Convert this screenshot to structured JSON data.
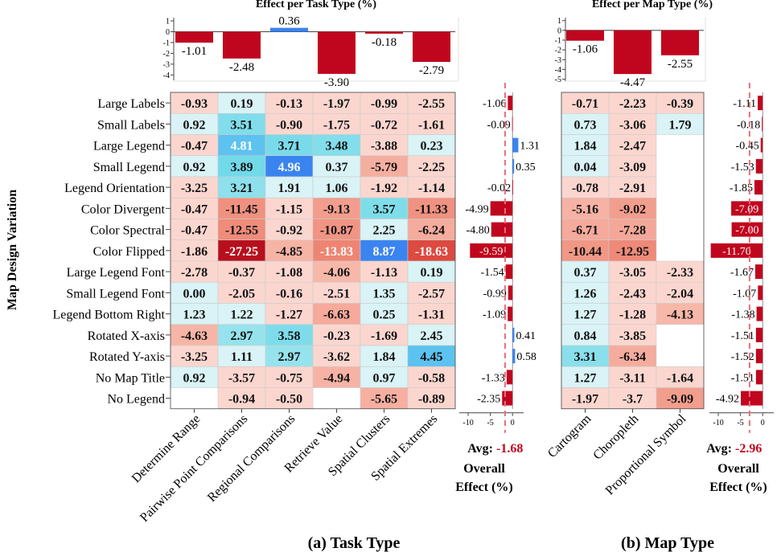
{
  "titles": {
    "task_top": "Effect per Task Type (%)",
    "map_top": "Effect per Map Type (%)",
    "ylabel": "Map Design Variation",
    "panel_a": "(a) Task Type",
    "panel_b": "(b) Map Type",
    "overall": [
      "Overall",
      "Effect (%)"
    ],
    "avg_label": "Avg:",
    "avg_task": "-1.68",
    "avg_map": "-2.96"
  },
  "colors": {
    "neg_bar": "#c0061e",
    "pos_bar": "#3a84f0",
    "avg_line": "#e8707a",
    "avg_text": "#c0061e"
  },
  "chart_data": [
    {
      "type": "heatmap",
      "title": "(a) Task Type",
      "ylabel": "Map Design Variation",
      "rows": [
        "Large Labels",
        "Small Labels",
        "Large Legend",
        "Small Legend",
        "Legend Orientation",
        "Color Divergent",
        "Color Spectral",
        "Color Flipped",
        "Large Legend Font",
        "Small Legend Font",
        "Legend Bottom Right",
        "Rotated X-axis",
        "Rotated Y-axis",
        "No Map Title",
        "No Legend"
      ],
      "columns": [
        "Determine Range",
        "Pairwise Point Comparisons",
        "Regional Comparisons",
        "Retrieve Value",
        "Spatial Clusters",
        "Spatial Extremes"
      ],
      "values": [
        [
          -0.93,
          0.19,
          -0.13,
          -1.97,
          -0.99,
          -2.55
        ],
        [
          0.92,
          3.51,
          -0.9,
          -1.75,
          -0.72,
          -1.61
        ],
        [
          -0.47,
          4.81,
          3.71,
          3.48,
          -3.88,
          0.23
        ],
        [
          0.92,
          3.89,
          4.96,
          0.37,
          -5.79,
          -2.25
        ],
        [
          -3.25,
          3.21,
          1.91,
          1.06,
          -1.92,
          -1.14
        ],
        [
          -0.47,
          -11.45,
          -1.15,
          -9.13,
          3.57,
          -11.33
        ],
        [
          -0.47,
          -12.55,
          -0.92,
          -10.87,
          2.25,
          -6.24
        ],
        [
          -1.86,
          -27.25,
          -4.85,
          -13.83,
          8.87,
          -18.63
        ],
        [
          -2.78,
          -0.37,
          -1.08,
          -4.06,
          -1.13,
          0.19
        ],
        [
          0.0,
          -2.05,
          -0.16,
          -2.51,
          1.35,
          -2.57
        ],
        [
          1.23,
          1.22,
          -1.27,
          -6.63,
          0.25,
          -1.31
        ],
        [
          -4.63,
          2.97,
          3.58,
          -0.23,
          -1.69,
          2.45
        ],
        [
          -3.25,
          1.11,
          2.97,
          -3.62,
          1.84,
          4.45
        ],
        [
          0.92,
          -3.57,
          -0.75,
          -4.94,
          0.97,
          -0.58
        ],
        [
          null,
          -0.94,
          -0.5,
          null,
          -5.65,
          -0.89
        ]
      ],
      "value_labels": [
        [
          "-0.93",
          "0.19",
          "-0.13",
          "-1.97",
          "-0.99",
          "-2.55"
        ],
        [
          "0.92",
          "3.51",
          "-0.90",
          "-1.75",
          "-0.72",
          "-1.61"
        ],
        [
          "-0.47",
          "4.81",
          "3.71",
          "3.48",
          "-3.88",
          "0.23"
        ],
        [
          "0.92",
          "3.89",
          "4.96",
          "0.37",
          "-5.79",
          "-2.25"
        ],
        [
          "-3.25",
          "3.21",
          "1.91",
          "1.06",
          "-1.92",
          "-1.14"
        ],
        [
          "-0.47",
          "-11.45",
          "-1.15",
          "-9.13",
          "3.57",
          "-11.33"
        ],
        [
          "-0.47",
          "-12.55",
          "-0.92",
          "-10.87",
          "2.25",
          "-6.24"
        ],
        [
          "-1.86",
          "-27.25",
          "-4.85",
          "-13.83",
          "8.87",
          "-18.63"
        ],
        [
          "-2.78",
          "-0.37",
          "-1.08",
          "-4.06",
          "-1.13",
          "0.19"
        ],
        [
          "0.00",
          "-2.05",
          "-0.16",
          "-2.51",
          "1.35",
          "-2.57"
        ],
        [
          "1.23",
          "1.22",
          "-1.27",
          "-6.63",
          "0.25",
          "-1.31"
        ],
        [
          "-4.63",
          "2.97",
          "3.58",
          "-0.23",
          "-1.69",
          "2.45"
        ],
        [
          "-3.25",
          "1.11",
          "2.97",
          "-3.62",
          "1.84",
          "4.45"
        ],
        [
          "0.92",
          "-3.57",
          "-0.75",
          "-4.94",
          "0.97",
          "-0.58"
        ],
        [
          "",
          "-0.94",
          "-0.50",
          "",
          "-5.65",
          "-0.89"
        ]
      ]
    },
    {
      "type": "bar",
      "title": "Effect per Task Type (%)",
      "categories": [
        "Determine Range",
        "Pairwise Point Comparisons",
        "Regional Comparisons",
        "Retrieve Value",
        "Spatial Clusters",
        "Spatial Extremes"
      ],
      "values": [
        -1.01,
        -2.48,
        0.36,
        -3.9,
        -0.18,
        -2.79
      ],
      "value_labels": [
        "-1.01",
        "-2.48",
        "0.36",
        "-3.90",
        "-0.18",
        "-2.79"
      ],
      "ylim": [
        -4.5,
        1.3
      ],
      "yticks": [
        1,
        0,
        -1,
        -2,
        -3,
        -4
      ],
      "ytick_labels": [
        "1",
        "0",
        "-1",
        "-2",
        "-3",
        "-4"
      ]
    },
    {
      "type": "bar",
      "orientation": "horizontal",
      "title": "Overall Effect (%)",
      "categories": [
        "Large Labels",
        "Small Labels",
        "Large Legend",
        "Small Legend",
        "Legend Orientation",
        "Color Divergent",
        "Color Spectral",
        "Color Flipped",
        "Large Legend Font",
        "Small Legend Font",
        "Legend Bottom Right",
        "Rotated X-axis",
        "Rotated Y-axis",
        "No Map Title",
        "No Legend"
      ],
      "values": [
        -1.06,
        -0.09,
        1.31,
        0.35,
        -0.02,
        -4.99,
        -4.8,
        -9.59,
        -1.54,
        -0.99,
        -1.09,
        0.41,
        0.58,
        -1.33,
        -2.35
      ],
      "value_labels": [
        "-1.06",
        "-0.09",
        "1.31",
        "0.35",
        "-0.02",
        "-4.99",
        "-4.80",
        "-9.59",
        "-1.54",
        "-0.99",
        "-1.09",
        "0.41",
        "0.58",
        "-1.33",
        "-2.35"
      ],
      "average": -1.68,
      "xlim": [
        -12,
        2.5
      ],
      "xticks": [
        -10,
        -5,
        0
      ],
      "xtick_labels": [
        "-10",
        "-5",
        "0"
      ]
    },
    {
      "type": "heatmap",
      "title": "(b) Map Type",
      "rows": [
        "Large Labels",
        "Small Labels",
        "Large Legend",
        "Small Legend",
        "Legend Orientation",
        "Color Divergent",
        "Color Spectral",
        "Color Flipped",
        "Large Legend Font",
        "Small Legend Font",
        "Legend Bottom Right",
        "Rotated X-axis",
        "Rotated Y-axis",
        "No Map Title",
        "No Legend"
      ],
      "columns": [
        "Cartogram",
        "Choropleth",
        "Proportional Symbol"
      ],
      "values": [
        [
          -0.71,
          -2.23,
          -0.39
        ],
        [
          0.73,
          -3.06,
          1.79
        ],
        [
          1.84,
          -2.47,
          null
        ],
        [
          0.04,
          -3.09,
          null
        ],
        [
          -0.78,
          -2.91,
          null
        ],
        [
          -5.16,
          -9.02,
          null
        ],
        [
          -6.71,
          -7.28,
          null
        ],
        [
          -10.44,
          -12.95,
          null
        ],
        [
          0.37,
          -3.05,
          -2.33
        ],
        [
          1.26,
          -2.43,
          -2.04
        ],
        [
          1.27,
          -1.28,
          -4.13
        ],
        [
          0.84,
          -3.85,
          null
        ],
        [
          3.31,
          -6.34,
          null
        ],
        [
          1.27,
          -3.11,
          -1.64
        ],
        [
          -1.97,
          -3.7,
          -9.09
        ]
      ],
      "value_labels": [
        [
          "-0.71",
          "-2.23",
          "-0.39"
        ],
        [
          "0.73",
          "-3.06",
          "1.79"
        ],
        [
          "1.84",
          "-2.47",
          ""
        ],
        [
          "0.04",
          "-3.09",
          ""
        ],
        [
          "-0.78",
          "-2.91",
          ""
        ],
        [
          "-5.16",
          "-9.02",
          ""
        ],
        [
          "-6.71",
          "-7.28",
          ""
        ],
        [
          "-10.44",
          "-12.95",
          ""
        ],
        [
          "0.37",
          "-3.05",
          "-2.33"
        ],
        [
          "1.26",
          "-2.43",
          "-2.04"
        ],
        [
          "1.27",
          "-1.28",
          "-4.13"
        ],
        [
          "0.84",
          "-3.85",
          ""
        ],
        [
          "3.31",
          "-6.34",
          ""
        ],
        [
          "1.27",
          "-3.11",
          "-1.64"
        ],
        [
          "-1.97",
          "-3.7",
          "-9.09"
        ]
      ]
    },
    {
      "type": "bar",
      "title": "Effect per Map Type (%)",
      "categories": [
        "Cartogram",
        "Choropleth",
        "Proportional Symbol"
      ],
      "values": [
        -1.06,
        -4.47,
        -2.55
      ],
      "value_labels": [
        "-1.06",
        "-4.47",
        "-2.55"
      ],
      "ylim": [
        -5.2,
        1.3
      ],
      "yticks": [
        1,
        0,
        -1,
        -2,
        -3,
        -4,
        -5
      ],
      "ytick_labels": [
        "1",
        "0",
        "-1",
        "-2",
        "-3",
        "-4",
        "-5"
      ]
    },
    {
      "type": "bar",
      "orientation": "horizontal",
      "title": "Overall Effect (%)",
      "categories": [
        "Large Labels",
        "Small Labels",
        "Large Legend",
        "Small Legend",
        "Legend Orientation",
        "Color Divergent",
        "Color Spectral",
        "Color Flipped",
        "Large Legend Font",
        "Small Legend Font",
        "Legend Bottom Right",
        "Rotated X-axis",
        "Rotated Y-axis",
        "No Map Title",
        "No Legend"
      ],
      "values": [
        -1.11,
        -0.18,
        -0.45,
        -1.53,
        -1.85,
        -7.09,
        -7.0,
        -11.7,
        -1.67,
        -1.07,
        -1.38,
        -1.51,
        -1.52,
        -1.51,
        -4.92
      ],
      "value_labels": [
        "-1.11",
        "-0.18",
        "-0.45",
        "-1.53",
        "-1.85",
        "-7.09",
        "-7.00",
        "-11.70",
        "-1.67",
        "-1.07",
        "-1.38",
        "-1.51",
        "-1.52",
        "-1.51",
        "-4.92"
      ],
      "average": -2.96,
      "xlim": [
        -12,
        2.5
      ],
      "xticks": [
        -10,
        -5,
        0
      ],
      "xtick_labels": [
        "-10",
        "-5",
        "0"
      ]
    }
  ]
}
